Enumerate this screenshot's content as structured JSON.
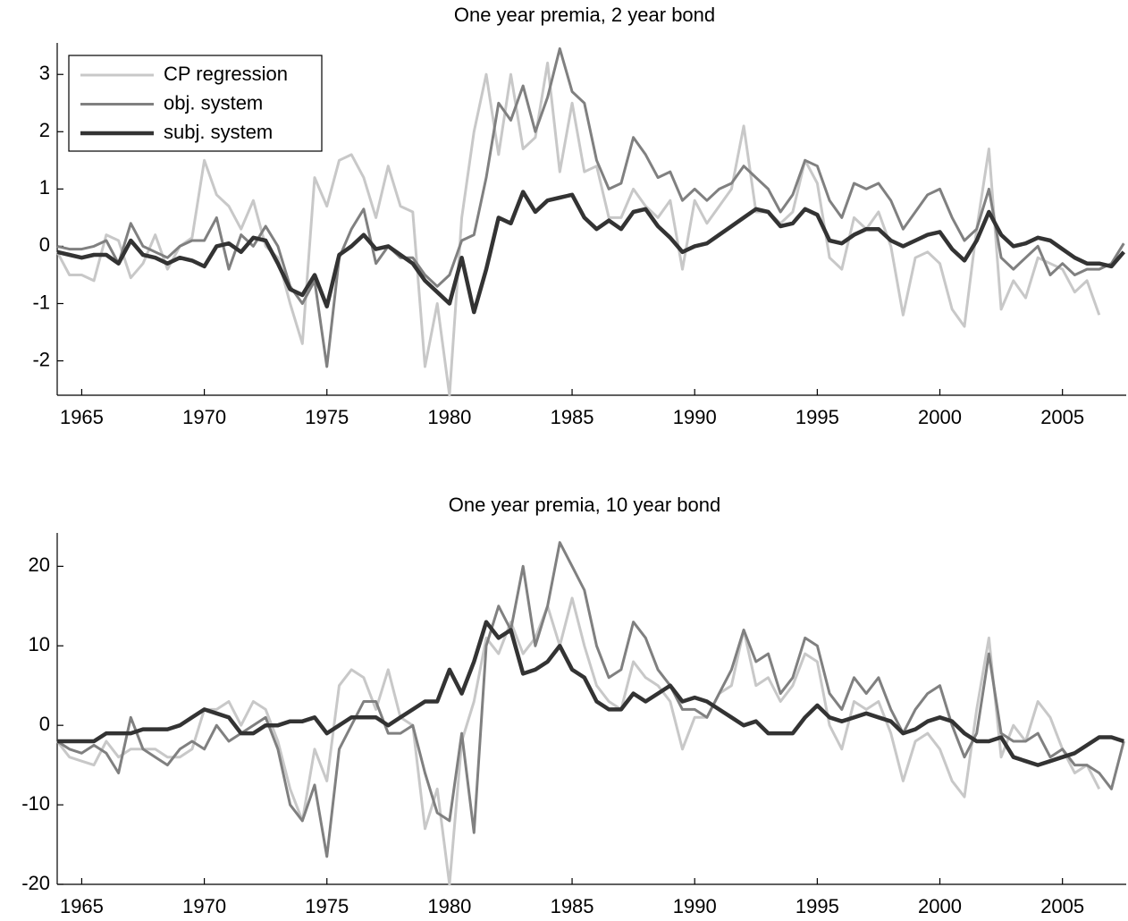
{
  "chart_data": [
    {
      "type": "line",
      "title": "One year premia, 2 year bond",
      "x": [
        1964,
        1964.5,
        1965,
        1965.5,
        1966,
        1966.5,
        1967,
        1967.5,
        1968,
        1968.5,
        1969,
        1969.5,
        1970,
        1970.5,
        1971,
        1971.5,
        1972,
        1972.5,
        1973,
        1973.5,
        1974,
        1974.5,
        1975,
        1975.5,
        1976,
        1976.5,
        1977,
        1977.5,
        1978,
        1978.5,
        1979,
        1979.5,
        1980,
        1980.5,
        1981,
        1981.5,
        1982,
        1982.5,
        1983,
        1983.5,
        1984,
        1984.5,
        1985,
        1985.5,
        1986,
        1986.5,
        1987,
        1987.5,
        1988,
        1988.5,
        1989,
        1989.5,
        1990,
        1990.5,
        1991,
        1991.5,
        1992,
        1992.5,
        1993,
        1993.5,
        1994,
        1994.5,
        1995,
        1995.5,
        1996,
        1996.5,
        1997,
        1997.5,
        1998,
        1998.5,
        1999,
        1999.5,
        2000,
        2000.5,
        2001,
        2001.5,
        2002,
        2002.5,
        2003,
        2003.5,
        2004,
        2004.5,
        2005,
        2005.5,
        2006,
        2006.5,
        2007,
        2007.5
      ],
      "xlim": [
        1964,
        2007.6
      ],
      "xticks": [
        1965,
        1970,
        1975,
        1980,
        1985,
        1990,
        1995,
        2000,
        2005
      ],
      "ylim": [
        -2.6,
        3.55
      ],
      "yticks": [
        -2,
        -1,
        0,
        1,
        2,
        3
      ],
      "legend": "upper left",
      "series": [
        {
          "name": "CP regression",
          "color": "#c8c8c8",
          "width": 3,
          "values": [
            -0.1,
            -0.5,
            -0.5,
            -0.6,
            0.2,
            0.1,
            -0.55,
            -0.3,
            0.2,
            -0.4,
            0.0,
            0.15,
            1.5,
            0.9,
            0.7,
            0.3,
            0.8,
            0.0,
            -0.2,
            -1.0,
            -1.7,
            1.2,
            0.7,
            1.5,
            1.6,
            1.2,
            0.5,
            1.4,
            0.7,
            0.6,
            -2.1,
            -1.0,
            -2.6,
            0.5,
            2.0,
            3.0,
            1.6,
            3.0,
            1.7,
            1.9,
            3.2,
            1.3,
            2.5,
            1.3,
            1.4,
            0.5,
            0.5,
            1.0,
            0.7,
            0.5,
            0.8,
            -0.4,
            0.8,
            0.4,
            0.7,
            1.0,
            2.1,
            0.6,
            0.6,
            0.4,
            0.6,
            1.5,
            1.1,
            -0.2,
            -0.4,
            0.5,
            0.3,
            0.6,
            0.0,
            -1.2,
            -0.2,
            -0.1,
            -0.3,
            -1.1,
            -1.4,
            0.3,
            1.7,
            -1.1,
            -0.6,
            -0.9,
            -0.2,
            -0.3,
            -0.4,
            -0.8,
            -0.6,
            -1.2,
            null,
            null
          ]
        },
        {
          "name": "obj. system",
          "color": "#808080",
          "width": 3,
          "values": [
            0.0,
            -0.05,
            -0.05,
            0.0,
            0.1,
            -0.3,
            0.4,
            0.0,
            -0.1,
            -0.2,
            0.0,
            0.1,
            0.1,
            0.5,
            -0.4,
            0.2,
            0.0,
            0.35,
            0.0,
            -0.7,
            -1.0,
            -0.6,
            -2.1,
            -0.2,
            0.3,
            0.65,
            -0.3,
            0.0,
            -0.2,
            -0.2,
            -0.5,
            -0.7,
            -0.5,
            0.1,
            0.2,
            1.2,
            2.5,
            2.2,
            2.8,
            2.0,
            2.6,
            3.45,
            2.7,
            2.5,
            1.5,
            1.0,
            1.1,
            1.9,
            1.6,
            1.2,
            1.3,
            0.8,
            1.0,
            0.8,
            1.0,
            1.1,
            1.4,
            1.2,
            1.0,
            0.6,
            0.9,
            1.5,
            1.4,
            0.8,
            0.5,
            1.1,
            1.0,
            1.1,
            0.8,
            0.3,
            0.6,
            0.9,
            1.0,
            0.5,
            0.1,
            0.3,
            1.0,
            -0.2,
            -0.4,
            -0.2,
            0.0,
            -0.5,
            -0.3,
            -0.5,
            -0.4,
            -0.4,
            -0.3,
            0.05
          ]
        },
        {
          "name": "subj. system",
          "color": "#333333",
          "width": 4.5,
          "values": [
            -0.1,
            -0.15,
            -0.2,
            -0.15,
            -0.15,
            -0.3,
            0.1,
            -0.15,
            -0.2,
            -0.3,
            -0.2,
            -0.25,
            -0.35,
            0.0,
            0.05,
            -0.1,
            0.15,
            0.1,
            -0.3,
            -0.75,
            -0.85,
            -0.5,
            -1.05,
            -0.15,
            0.0,
            0.2,
            -0.05,
            0.0,
            -0.15,
            -0.3,
            -0.6,
            -0.8,
            -1.0,
            -0.2,
            -1.15,
            -0.4,
            0.5,
            0.4,
            0.95,
            0.6,
            0.8,
            0.85,
            0.9,
            0.5,
            0.3,
            0.45,
            0.3,
            0.6,
            0.65,
            0.35,
            0.15,
            -0.1,
            0.0,
            0.05,
            0.2,
            0.35,
            0.5,
            0.65,
            0.6,
            0.35,
            0.4,
            0.65,
            0.55,
            0.1,
            0.05,
            0.2,
            0.3,
            0.3,
            0.1,
            0.0,
            0.1,
            0.2,
            0.25,
            -0.05,
            -0.25,
            0.1,
            0.6,
            0.2,
            0.0,
            0.05,
            0.15,
            0.1,
            -0.05,
            -0.2,
            -0.3,
            -0.3,
            -0.35,
            -0.1
          ]
        }
      ]
    },
    {
      "type": "line",
      "title": "One year premia, 10 year bond",
      "x": [
        1964,
        1964.5,
        1965,
        1965.5,
        1966,
        1966.5,
        1967,
        1967.5,
        1968,
        1968.5,
        1969,
        1969.5,
        1970,
        1970.5,
        1971,
        1971.5,
        1972,
        1972.5,
        1973,
        1973.5,
        1974,
        1974.5,
        1975,
        1975.5,
        1976,
        1976.5,
        1977,
        1977.5,
        1978,
        1978.5,
        1979,
        1979.5,
        1980,
        1980.5,
        1981,
        1981.5,
        1982,
        1982.5,
        1983,
        1983.5,
        1984,
        1984.5,
        1985,
        1985.5,
        1986,
        1986.5,
        1987,
        1987.5,
        1988,
        1988.5,
        1989,
        1989.5,
        1990,
        1990.5,
        1991,
        1991.5,
        1992,
        1992.5,
        1993,
        1993.5,
        1994,
        1994.5,
        1995,
        1995.5,
        1996,
        1996.5,
        1997,
        1997.5,
        1998,
        1998.5,
        1999,
        1999.5,
        2000,
        2000.5,
        2001,
        2001.5,
        2002,
        2002.5,
        2003,
        2003.5,
        2004,
        2004.5,
        2005,
        2005.5,
        2006,
        2006.5,
        2007,
        2007.5
      ],
      "xlim": [
        1964,
        2007.6
      ],
      "xticks": [
        1965,
        1970,
        1975,
        1980,
        1985,
        1990,
        1995,
        2000,
        2005
      ],
      "ylim": [
        -20,
        24.2
      ],
      "yticks": [
        -20,
        -10,
        0,
        10,
        20
      ],
      "series": [
        {
          "color": "#c8c8c8",
          "width": 3,
          "values": [
            -2,
            -4,
            -4.5,
            -5,
            -2,
            -4,
            -3,
            -3,
            -3,
            -4,
            -4,
            -3,
            2,
            2,
            3,
            0,
            3,
            2,
            -2,
            -8,
            -12,
            -3,
            -7,
            5,
            7,
            6,
            2,
            7,
            1,
            0,
            -13,
            -8,
            -20,
            -2,
            3,
            11,
            9,
            13,
            9,
            11,
            15,
            10,
            16,
            10,
            5,
            3,
            2,
            8,
            6,
            5,
            3,
            -3,
            1,
            1,
            4,
            5,
            12,
            5,
            6,
            3,
            5,
            9,
            8,
            0,
            -3,
            3,
            2,
            3,
            -1,
            -7,
            -2,
            -1,
            -3,
            -7,
            -9,
            2,
            11,
            -4,
            0,
            -2,
            3,
            1,
            -3,
            -6,
            -5,
            -8,
            null,
            null
          ]
        },
        {
          "color": "#808080",
          "width": 3,
          "values": [
            -2,
            -3,
            -3.5,
            -2.5,
            -3.5,
            -6,
            1,
            -3,
            -4,
            -5,
            -3,
            -2,
            -3,
            0,
            -2,
            -1,
            0,
            1,
            -3,
            -10,
            -12,
            -7.5,
            -16.5,
            -3,
            0,
            3,
            3,
            -1,
            -1,
            0,
            -6,
            -11,
            -12,
            -1,
            -13.5,
            10,
            15,
            12,
            20,
            10,
            15,
            23,
            20,
            17,
            10,
            6,
            7,
            13,
            11,
            7,
            5,
            2,
            2,
            1,
            4,
            7,
            12,
            8,
            9,
            4,
            6,
            11,
            10,
            4,
            2,
            6,
            4,
            6,
            2,
            -1,
            2,
            4,
            5,
            0,
            -4,
            -1,
            9,
            -1,
            -2,
            -2,
            -1,
            -4,
            -3,
            -5,
            -5,
            -6,
            -8,
            -2
          ]
        },
        {
          "color": "#333333",
          "width": 4.5,
          "values": [
            -2,
            -2,
            -2,
            -2,
            -1,
            -1,
            -1,
            -0.5,
            -0.5,
            -0.5,
            0,
            1,
            2,
            1.5,
            1,
            -1,
            -1,
            0,
            0,
            0.5,
            0.5,
            1,
            -1,
            0,
            1,
            1,
            1,
            0,
            1,
            2,
            3,
            3,
            7,
            4,
            8,
            13,
            11,
            12,
            6.5,
            7,
            8,
            10,
            7,
            6,
            3,
            2,
            2,
            4,
            3,
            4,
            5,
            3,
            3.5,
            3,
            2,
            1,
            0,
            0.5,
            -1,
            -1,
            -1,
            1,
            2.5,
            1,
            0.5,
            1,
            1.5,
            1,
            0.5,
            -1,
            -0.5,
            0.5,
            1,
            0.5,
            -1,
            -2,
            -2,
            -1.5,
            -4,
            -4.5,
            -5,
            -4.5,
            -4,
            -3.5,
            -2.5,
            -1.5,
            -1.5,
            -2
          ]
        }
      ]
    }
  ]
}
